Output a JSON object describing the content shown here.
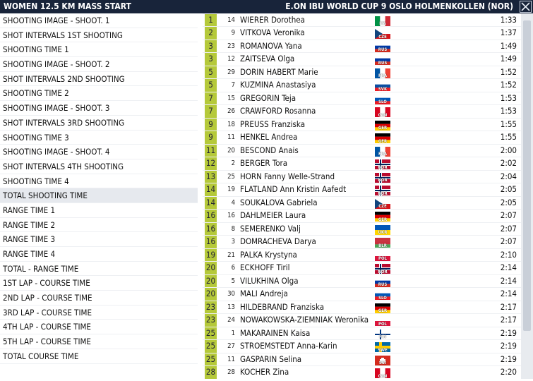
{
  "header": {
    "left_title": "WOMEN 12.5 KM MASS START",
    "right_title": "E.ON IBU WORLD CUP 9 OSLO HOLMENKOLLEN (NOR)"
  },
  "menu": [
    "SHOOTING IMAGE - SHOOT. 1",
    "SHOT INTERVALS 1ST SHOOTING",
    "SHOOTING TIME 1",
    "SHOOTING IMAGE - SHOOT. 2",
    "SHOT INTERVALS 2ND SHOOTING",
    "SHOOTING TIME 2",
    "SHOOTING IMAGE - SHOOT. 3",
    "SHOT INTERVALS 3RD SHOOTING",
    "SHOOTING TIME 3",
    "SHOOTING IMAGE - SHOOT. 4",
    "SHOT INTERVALS 4TH SHOOTING",
    "SHOOTING TIME 4",
    "TOTAL SHOOTING TIME",
    "RANGE TIME 1",
    "RANGE TIME 2",
    "RANGE TIME 3",
    "RANGE TIME 4",
    "TOTAL - RANGE TIME",
    "1ST LAP - COURSE TIME",
    "2ND LAP - COURSE TIME",
    "3RD LAP - COURSE TIME",
    "4TH LAP - COURSE TIME",
    "5TH LAP - COURSE TIME",
    "TOTAL COURSE TIME"
  ],
  "active_menu_index": 12,
  "results": [
    {
      "rank": "1",
      "bib": "14",
      "name": "WIERER Dorothea",
      "nat": "ITA",
      "time": "1:33"
    },
    {
      "rank": "2",
      "bib": "9",
      "name": "VITKOVA Veronika",
      "nat": "CZE",
      "time": "1:37"
    },
    {
      "rank": "3",
      "bib": "23",
      "name": "ROMANOVA Yana",
      "nat": "RUS",
      "time": "1:49"
    },
    {
      "rank": "3",
      "bib": "12",
      "name": "ZAITSEVA Olga",
      "nat": "RUS",
      "time": "1:49"
    },
    {
      "rank": "5",
      "bib": "29",
      "name": "DORIN HABERT Marie",
      "nat": "FRA",
      "time": "1:52"
    },
    {
      "rank": "5",
      "bib": "7",
      "name": "KUZMINA Anastasiya",
      "nat": "SVK",
      "time": "1:52"
    },
    {
      "rank": "7",
      "bib": "15",
      "name": "GREGORIN Teja",
      "nat": "SLO",
      "time": "1:53"
    },
    {
      "rank": "7",
      "bib": "26",
      "name": "CRAWFORD Rosanna",
      "nat": "CAN",
      "time": "1:53"
    },
    {
      "rank": "9",
      "bib": "18",
      "name": "PREUSS Franziska",
      "nat": "GER",
      "time": "1:55"
    },
    {
      "rank": "9",
      "bib": "11",
      "name": "HENKEL Andrea",
      "nat": "GER",
      "time": "1:55"
    },
    {
      "rank": "11",
      "bib": "20",
      "name": "BESCOND Anais",
      "nat": "FRA",
      "time": "2:00"
    },
    {
      "rank": "12",
      "bib": "2",
      "name": "BERGER Tora",
      "nat": "NOR",
      "time": "2:02"
    },
    {
      "rank": "13",
      "bib": "25",
      "name": "HORN Fanny Welle-Strand",
      "nat": "NOR",
      "time": "2:04"
    },
    {
      "rank": "14",
      "bib": "19",
      "name": "FLATLAND Ann Kristin Aafedt",
      "nat": "NOR",
      "time": "2:05"
    },
    {
      "rank": "14",
      "bib": "4",
      "name": "SOUKALOVA Gabriela",
      "nat": "CZE",
      "time": "2:05"
    },
    {
      "rank": "16",
      "bib": "16",
      "name": "DAHLMEIER Laura",
      "nat": "GER",
      "time": "2:07"
    },
    {
      "rank": "16",
      "bib": "8",
      "name": "SEMERENKO Valj",
      "nat": "UKR",
      "time": "2:07"
    },
    {
      "rank": "16",
      "bib": "3",
      "name": "DOMRACHEVA Darya",
      "nat": "BLR",
      "time": "2:07"
    },
    {
      "rank": "19",
      "bib": "21",
      "name": "PALKA Krystyna",
      "nat": "POL",
      "time": "2:10"
    },
    {
      "rank": "20",
      "bib": "6",
      "name": "ECKHOFF Tiril",
      "nat": "NOR",
      "time": "2:14"
    },
    {
      "rank": "20",
      "bib": "5",
      "name": "VILUKHINA Olga",
      "nat": "RUS",
      "time": "2:14"
    },
    {
      "rank": "20",
      "bib": "30",
      "name": "MALI Andreja",
      "nat": "SLO",
      "time": "2:14"
    },
    {
      "rank": "23",
      "bib": "13",
      "name": "HILDEBRAND Franziska",
      "nat": "GER",
      "time": "2:17"
    },
    {
      "rank": "23",
      "bib": "24",
      "name": "NOWAKOWSKA-ZIEMNIAK Weronika",
      "nat": "POL",
      "time": "2:17"
    },
    {
      "rank": "25",
      "bib": "1",
      "name": "MAKARAINEN Kaisa",
      "nat": "FIN",
      "time": "2:19"
    },
    {
      "rank": "25",
      "bib": "27",
      "name": "STROEMSTEDT Anna-Karin",
      "nat": "SWE",
      "time": "2:19"
    },
    {
      "rank": "25",
      "bib": "11",
      "name": "GASPARIN Selina",
      "nat": "SUI",
      "time": "2:19"
    },
    {
      "rank": "28",
      "bib": "28",
      "name": "KOCHER Zina",
      "nat": "CAN",
      "time": "2:20"
    }
  ],
  "colors": {
    "header_bg": "#18243a",
    "rank_badge": "#b5c93a",
    "active_menu_bg": "#e6e9ee"
  },
  "icons": {
    "close": "close-icon"
  }
}
